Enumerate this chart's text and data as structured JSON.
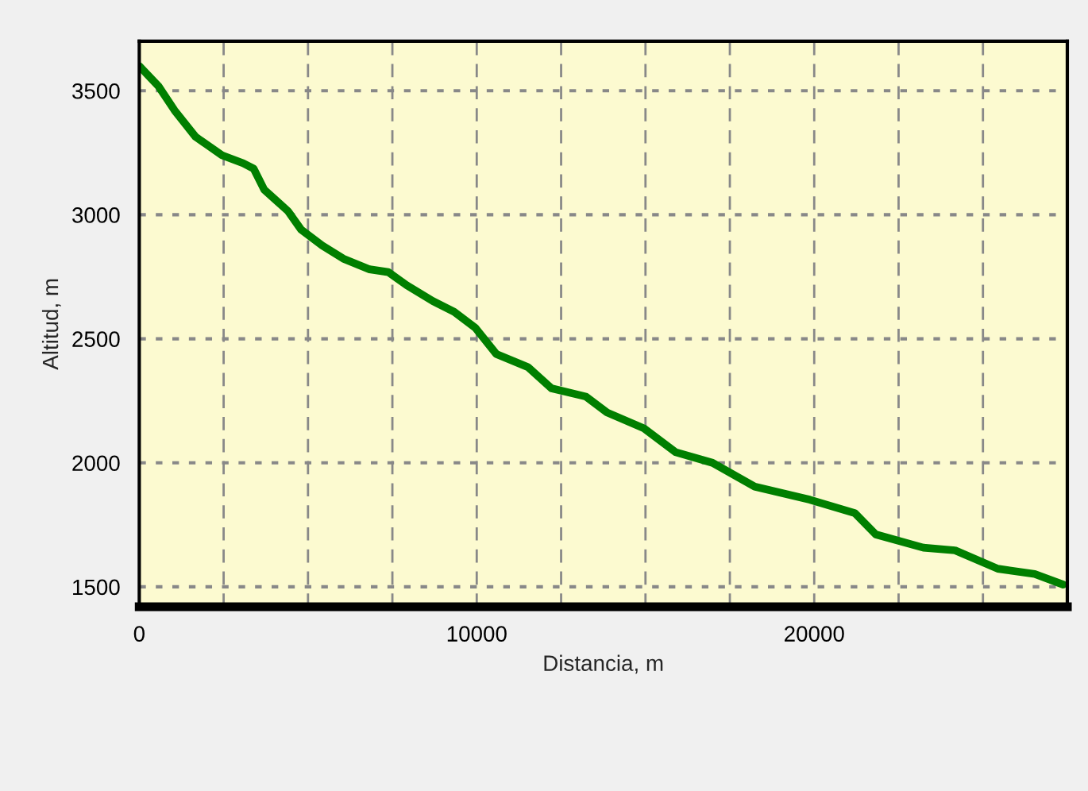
{
  "chart_data": {
    "type": "line",
    "xlabel": "Distancia, m",
    "ylabel": "Altitud, m",
    "x": [
      0,
      577,
      1045,
      1670,
      2452,
      3077,
      3390,
      3703,
      4406,
      4796,
      5420,
      6047,
      6826,
      7375,
      7923,
      8700,
      9330,
      9953,
      10577,
      11515,
      12218,
      13235,
      13860,
      14955,
      15893,
      16986,
      18237,
      19878,
      21205,
      21828,
      23235,
      24173,
      25439,
      26532,
      27378
    ],
    "series": [
      {
        "color": "#007f00",
        "values": [
          3600,
          3517,
          3421,
          3314,
          3240,
          3208,
          3186,
          3101,
          3015,
          2940,
          2876,
          2823,
          2780,
          2769,
          2716,
          2652,
          2609,
          2545,
          2439,
          2386,
          2300,
          2267,
          2203,
          2139,
          2043,
          2000,
          1904,
          1851,
          1797,
          1711,
          1658,
          1647,
          1573,
          1552,
          1509
        ]
      }
    ],
    "xlim": [
      0,
      27500
    ],
    "ylim": [
      1420,
      3700
    ],
    "xticks": [
      0,
      {
        "value": 2500,
        "label": null
      },
      {
        "value": 5000,
        "label": null
      },
      {
        "value": 7500,
        "label": null
      },
      10000,
      {
        "value": 12500,
        "label": null
      },
      {
        "value": 15000,
        "label": null
      },
      {
        "value": 17500,
        "label": null
      },
      20000,
      {
        "value": 22500,
        "label": null
      },
      {
        "value": 25000,
        "label": null
      },
      {
        "value": 27500,
        "label": null
      }
    ],
    "yticks": [
      1500,
      2000,
      2500,
      3000,
      3500
    ],
    "grid": true,
    "line_style": "solid",
    "marker": "none"
  }
}
